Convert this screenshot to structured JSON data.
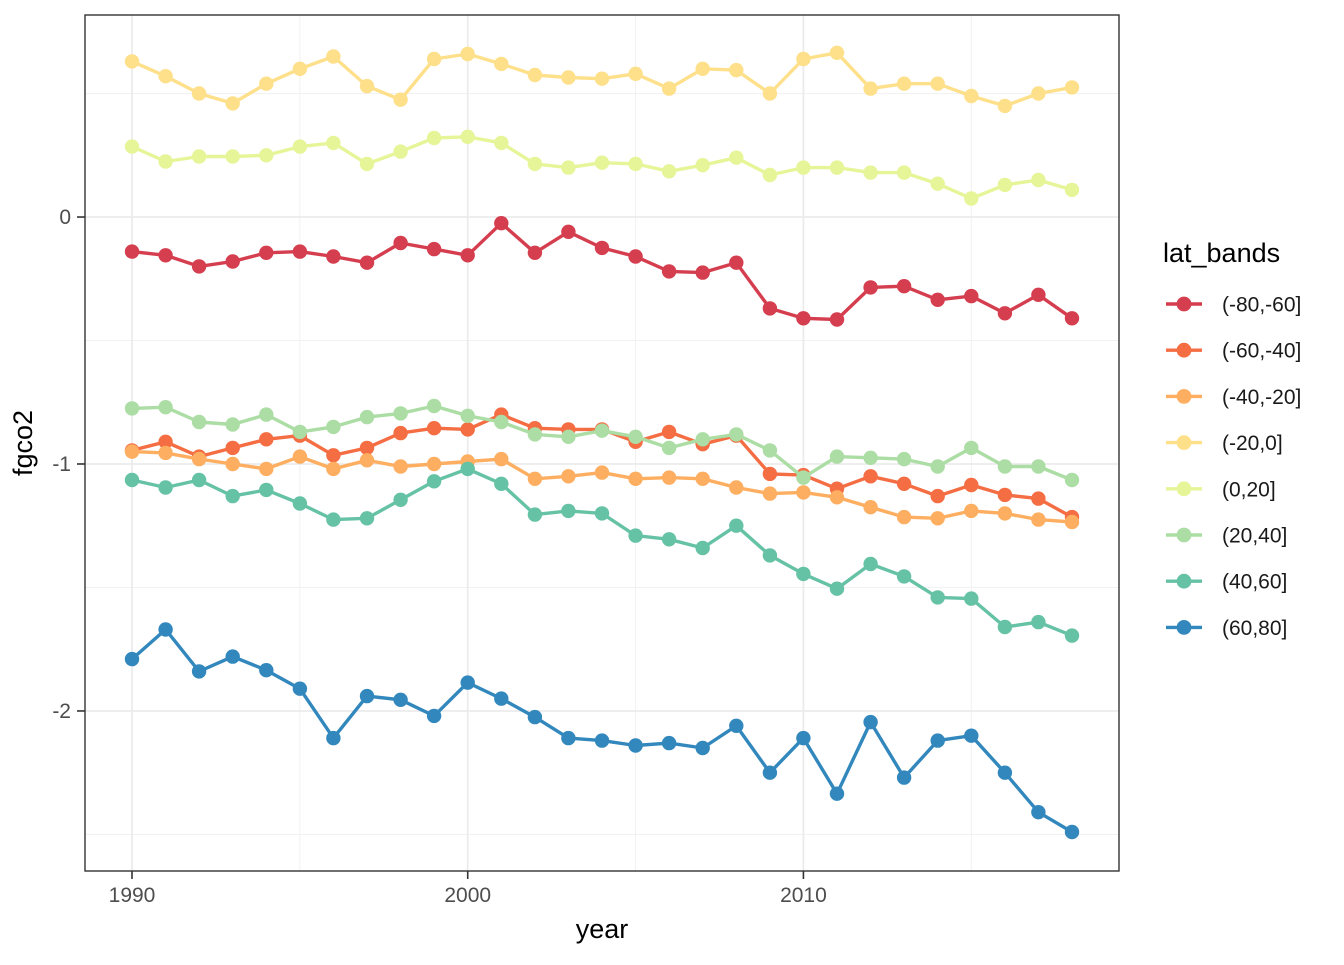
{
  "axes": {
    "x": {
      "label": "year"
    },
    "y": {
      "label": "fgco2"
    }
  },
  "legend": {
    "title": "lat_bands"
  },
  "style": {
    "panel_border_color": "#333333",
    "grid_major_color": "#EBEBEB",
    "grid_minor_color": "#F2F2F2",
    "tick_color": "#333333",
    "tick_label_color": "#4D4D4D",
    "title_color": "#000000",
    "legend_label_color": "#1A1A1A",
    "background": "#FFFFFF"
  },
  "chart_data": {
    "type": "line",
    "title": "",
    "xlabel": "year",
    "ylabel": "fgco2",
    "legend_title": "lat_bands",
    "legend_position": "right",
    "grid": true,
    "points": true,
    "xlim": [
      1988.6,
      2019.4
    ],
    "ylim": [
      -2.648,
      0.818
    ],
    "x_major_ticks": [
      1990,
      2000,
      2010
    ],
    "x_minor_ticks": [
      1995,
      2005,
      2015
    ],
    "y_major_ticks": [
      0,
      -1,
      -2
    ],
    "y_minor_ticks": [
      0.5,
      -0.5,
      -1.5,
      -2.5
    ],
    "x": [
      1990,
      1991,
      1992,
      1993,
      1994,
      1995,
      1996,
      1997,
      1998,
      1999,
      2000,
      2001,
      2002,
      2003,
      2004,
      2005,
      2006,
      2007,
      2008,
      2009,
      2010,
      2011,
      2012,
      2013,
      2014,
      2015,
      2016,
      2017,
      2018
    ],
    "series": [
      {
        "name": "(-80,-60]",
        "color": "#D53E4F",
        "values": [
          -0.14,
          -0.155,
          -0.2,
          -0.18,
          -0.145,
          -0.14,
          -0.16,
          -0.185,
          -0.105,
          -0.13,
          -0.155,
          -0.025,
          -0.145,
          -0.06,
          -0.125,
          -0.16,
          -0.22,
          -0.225,
          -0.185,
          -0.37,
          -0.41,
          -0.415,
          -0.285,
          -0.28,
          -0.335,
          -0.32,
          -0.39,
          -0.315,
          -0.41
        ]
      },
      {
        "name": "(-60,-40]",
        "color": "#F46D43",
        "values": [
          -0.945,
          -0.91,
          -0.97,
          -0.935,
          -0.9,
          -0.885,
          -0.965,
          -0.935,
          -0.875,
          -0.855,
          -0.86,
          -0.8,
          -0.855,
          -0.86,
          -0.86,
          -0.91,
          -0.87,
          -0.92,
          -0.885,
          -1.04,
          -1.045,
          -1.1,
          -1.05,
          -1.08,
          -1.13,
          -1.085,
          -1.125,
          -1.14,
          -1.215
        ]
      },
      {
        "name": "(-40,-20]",
        "color": "#FDAE61",
        "values": [
          -0.95,
          -0.955,
          -0.98,
          -1.0,
          -1.02,
          -0.97,
          -1.02,
          -0.985,
          -1.01,
          -1.0,
          -0.99,
          -0.98,
          -1.06,
          -1.05,
          -1.035,
          -1.06,
          -1.055,
          -1.06,
          -1.095,
          -1.12,
          -1.115,
          -1.135,
          -1.175,
          -1.215,
          -1.22,
          -1.19,
          -1.2,
          -1.225,
          -1.235
        ]
      },
      {
        "name": "(-20,0]",
        "color": "#FEE08B",
        "values": [
          0.63,
          0.57,
          0.5,
          0.46,
          0.54,
          0.6,
          0.65,
          0.53,
          0.475,
          0.64,
          0.66,
          0.62,
          0.575,
          0.565,
          0.56,
          0.58,
          0.52,
          0.6,
          0.595,
          0.5,
          0.64,
          0.665,
          0.52,
          0.54,
          0.54,
          0.49,
          0.45,
          0.5,
          0.525
        ]
      },
      {
        "name": "(0,20]",
        "color": "#E6F598",
        "values": [
          0.285,
          0.225,
          0.245,
          0.245,
          0.25,
          0.285,
          0.3,
          0.215,
          0.265,
          0.32,
          0.325,
          0.3,
          0.215,
          0.2,
          0.22,
          0.215,
          0.185,
          0.21,
          0.24,
          0.17,
          0.2,
          0.2,
          0.18,
          0.18,
          0.135,
          0.075,
          0.13,
          0.15,
          0.11
        ]
      },
      {
        "name": "(20,40]",
        "color": "#ABDDA4",
        "values": [
          -0.775,
          -0.77,
          -0.83,
          -0.84,
          -0.8,
          -0.87,
          -0.85,
          -0.81,
          -0.795,
          -0.765,
          -0.805,
          -0.83,
          -0.88,
          -0.89,
          -0.865,
          -0.89,
          -0.935,
          -0.9,
          -0.88,
          -0.945,
          -1.055,
          -0.97,
          -0.975,
          -0.98,
          -1.01,
          -0.935,
          -1.01,
          -1.01,
          -1.065
        ]
      },
      {
        "name": "(40,60]",
        "color": "#66C2A5",
        "values": [
          -1.065,
          -1.095,
          -1.065,
          -1.13,
          -1.105,
          -1.16,
          -1.225,
          -1.22,
          -1.145,
          -1.07,
          -1.02,
          -1.08,
          -1.205,
          -1.19,
          -1.2,
          -1.29,
          -1.305,
          -1.34,
          -1.25,
          -1.37,
          -1.445,
          -1.505,
          -1.405,
          -1.455,
          -1.54,
          -1.545,
          -1.66,
          -1.64,
          -1.695
        ]
      },
      {
        "name": "(60,80]",
        "color": "#3288BD",
        "values": [
          -1.79,
          -1.67,
          -1.84,
          -1.78,
          -1.835,
          -1.91,
          -2.11,
          -1.94,
          -1.955,
          -2.02,
          -1.885,
          -1.95,
          -2.025,
          -2.11,
          -2.12,
          -2.14,
          -2.13,
          -2.15,
          -2.06,
          -2.25,
          -2.11,
          -2.335,
          -2.045,
          -2.27,
          -2.12,
          -2.1,
          -2.25,
          -2.41,
          -2.49
        ]
      }
    ]
  }
}
